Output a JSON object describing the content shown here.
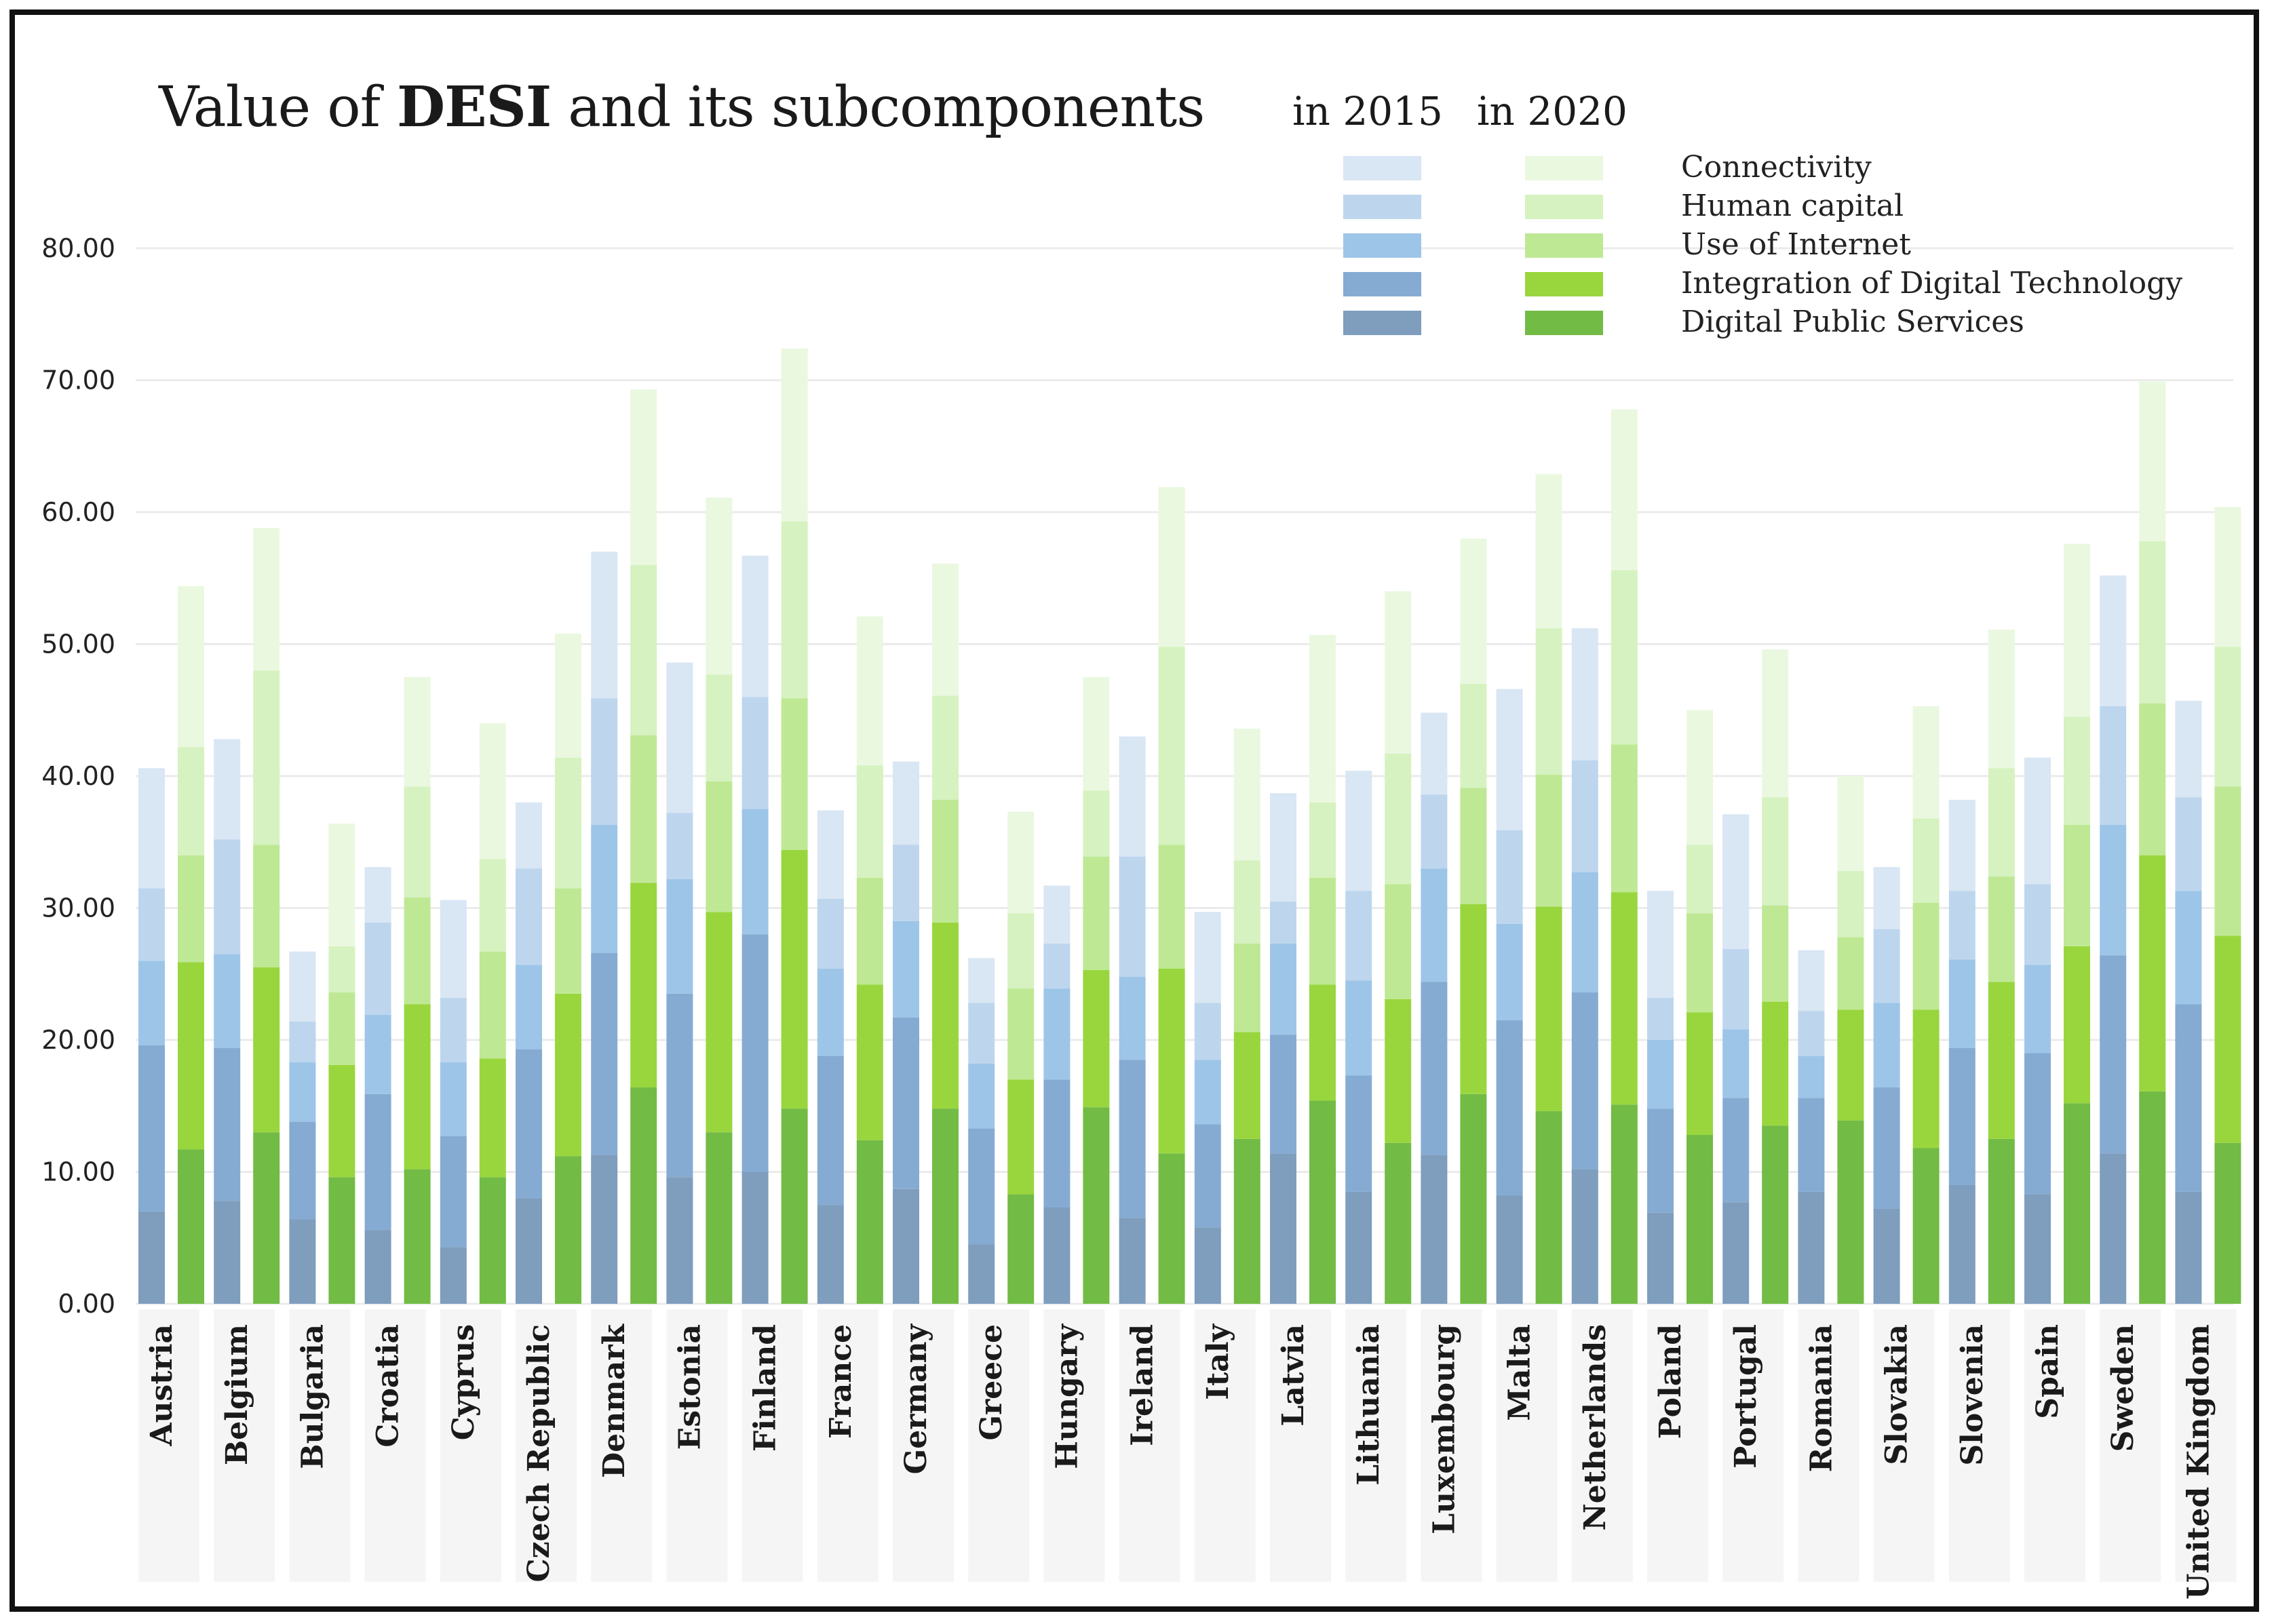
{
  "title": {
    "prefix": "Value of ",
    "bold": "DESI",
    "suffix": " and its subcomponents"
  },
  "legend": {
    "header_2015": "in 2015",
    "header_2020": "in 2020",
    "position": "top-right",
    "items": [
      "Connectivity",
      "Human capital",
      "Use of Internet",
      "Integration of Digital Technology",
      "Digital Public Services"
    ]
  },
  "colors": {
    "2015": [
      "#d9e6f4",
      "#bdd6ee",
      "#9dc5e8",
      "#85abd2",
      "#7f9dbd"
    ],
    "2020": [
      "#eaf8e0",
      "#d6f2c0",
      "#bfe895",
      "#99d63e",
      "#72bb45"
    ],
    "label_band": "#f5f5f5",
    "grid": "#ebebeb",
    "axis_text": "#222222"
  },
  "chart_data": {
    "type": "bar",
    "stacked": true,
    "grouped_by_year": [
      "2015",
      "2020"
    ],
    "ylim": [
      0,
      80
    ],
    "yticks": [
      "0.00",
      "10.00",
      "20.00",
      "30.00",
      "40.00",
      "50.00",
      "60.00",
      "70.00",
      "80.00"
    ],
    "grid": true,
    "categories": [
      "Austria",
      "Belgium",
      "Bulgaria",
      "Croatia",
      "Cyprus",
      "Czech Republic",
      "Denmark",
      "Estonia",
      "Finland",
      "France",
      "Germany",
      "Greece",
      "Hungary",
      "Ireland",
      "Italy",
      "Latvia",
      "Lithuania",
      "Luxembourg",
      "Malta",
      "Netherlands",
      "Poland",
      "Portugal",
      "Romania",
      "Slovakia",
      "Slovenia",
      "Spain",
      "Sweden",
      "United Kingdom"
    ],
    "series_order_bottom_to_top": [
      "Digital Public Services",
      "Integration of Digital Technology",
      "Use of Internet",
      "Human capital",
      "Connectivity"
    ],
    "stack_2015_cumulative": [
      [
        7.0,
        19.6,
        26.0,
        31.5,
        40.6
      ],
      [
        7.8,
        19.4,
        26.5,
        35.2,
        42.8
      ],
      [
        6.4,
        13.8,
        18.3,
        21.4,
        26.7
      ],
      [
        5.6,
        15.9,
        21.9,
        28.9,
        33.1
      ],
      [
        4.3,
        12.7,
        18.3,
        23.2,
        30.6
      ],
      [
        8.0,
        19.3,
        25.7,
        33.0,
        38.0
      ],
      [
        11.3,
        26.6,
        36.3,
        45.9,
        57.0
      ],
      [
        9.6,
        23.5,
        32.2,
        37.2,
        48.6
      ],
      [
        10.0,
        28.0,
        37.5,
        46.0,
        56.7
      ],
      [
        7.5,
        18.8,
        25.4,
        30.7,
        37.4
      ],
      [
        8.7,
        21.7,
        29.0,
        34.8,
        41.1
      ],
      [
        4.5,
        13.3,
        18.2,
        22.8,
        26.2
      ],
      [
        7.3,
        17.0,
        23.9,
        27.3,
        31.7
      ],
      [
        6.5,
        18.5,
        24.8,
        33.9,
        43.0
      ],
      [
        5.8,
        13.6,
        18.5,
        22.8,
        29.7
      ],
      [
        11.4,
        20.4,
        27.3,
        30.5,
        38.7
      ],
      [
        8.5,
        17.3,
        24.5,
        31.3,
        40.4
      ],
      [
        11.3,
        24.4,
        33.0,
        38.6,
        44.8
      ],
      [
        8.2,
        21.5,
        28.8,
        35.9,
        46.6
      ],
      [
        10.2,
        23.6,
        32.7,
        41.2,
        51.2
      ],
      [
        6.9,
        14.8,
        20.0,
        23.2,
        31.3
      ],
      [
        7.7,
        15.6,
        20.8,
        26.9,
        37.1
      ],
      [
        8.5,
        15.6,
        18.8,
        22.2,
        26.8
      ],
      [
        7.2,
        16.4,
        22.8,
        28.4,
        33.1
      ],
      [
        9.0,
        19.4,
        26.1,
        31.3,
        38.2
      ],
      [
        8.3,
        19.0,
        25.7,
        31.8,
        41.4
      ],
      [
        11.4,
        26.4,
        36.3,
        45.3,
        55.2
      ],
      [
        8.5,
        22.7,
        31.3,
        38.4,
        45.7
      ]
    ],
    "stack_2020_cumulative": [
      [
        11.7,
        25.9,
        34.0,
        42.2,
        54.4
      ],
      [
        13.0,
        25.5,
        34.8,
        48.0,
        58.8
      ],
      [
        9.6,
        18.1,
        23.6,
        27.1,
        36.4
      ],
      [
        10.2,
        22.7,
        30.8,
        39.2,
        47.5
      ],
      [
        9.6,
        18.6,
        26.7,
        33.7,
        44.0
      ],
      [
        11.2,
        23.5,
        31.5,
        41.4,
        50.8
      ],
      [
        16.4,
        31.9,
        43.1,
        56.0,
        69.3
      ],
      [
        13.0,
        29.7,
        39.6,
        47.7,
        61.1
      ],
      [
        14.8,
        34.4,
        45.9,
        59.3,
        72.4
      ],
      [
        12.4,
        24.2,
        32.3,
        40.8,
        52.1
      ],
      [
        14.8,
        28.9,
        38.2,
        46.1,
        56.1
      ],
      [
        8.3,
        17.0,
        23.9,
        29.6,
        37.3
      ],
      [
        14.9,
        25.3,
        33.9,
        38.9,
        47.5
      ],
      [
        11.4,
        25.4,
        34.8,
        49.8,
        61.9
      ],
      [
        12.5,
        20.6,
        27.3,
        33.6,
        43.6
      ],
      [
        15.4,
        24.2,
        32.3,
        38.0,
        50.7
      ],
      [
        12.2,
        23.1,
        31.8,
        41.7,
        54.0
      ],
      [
        15.9,
        30.3,
        39.1,
        47.0,
        58.0
      ],
      [
        14.6,
        30.1,
        40.1,
        51.2,
        62.9
      ],
      [
        15.1,
        31.2,
        42.4,
        55.6,
        67.8
      ],
      [
        12.8,
        22.1,
        29.6,
        34.8,
        45.0
      ],
      [
        13.5,
        22.9,
        30.2,
        38.4,
        49.6
      ],
      [
        13.9,
        22.3,
        27.8,
        32.8,
        40.0
      ],
      [
        11.8,
        22.3,
        30.4,
        36.8,
        45.3
      ],
      [
        12.5,
        24.4,
        32.4,
        40.6,
        51.1
      ],
      [
        15.2,
        27.1,
        36.3,
        44.5,
        57.6
      ],
      [
        16.1,
        34.0,
        45.5,
        57.8,
        69.9
      ],
      [
        12.2,
        27.9,
        39.2,
        49.8,
        60.4
      ]
    ]
  }
}
